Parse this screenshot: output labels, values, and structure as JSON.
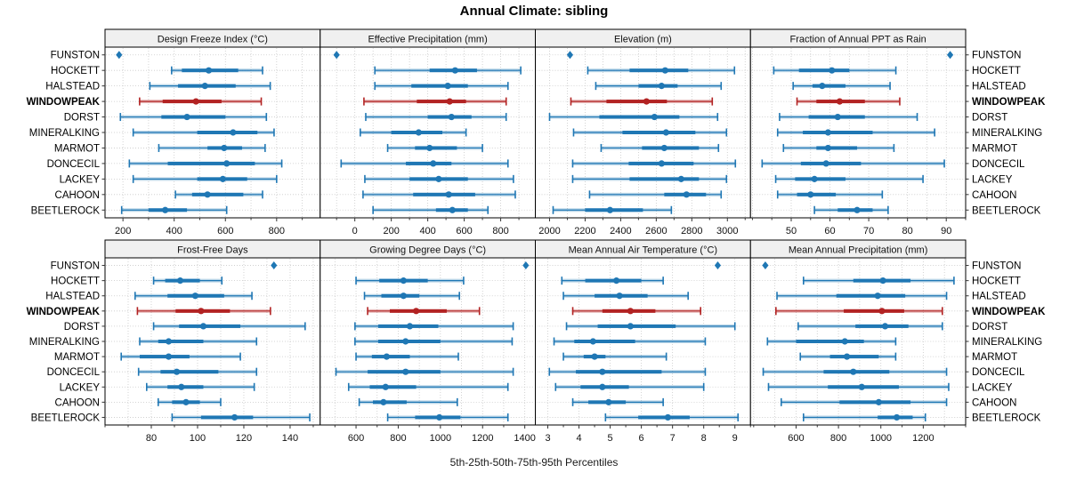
{
  "title": "Annual Climate: sibling",
  "caption": "5th-25th-50th-75th-95th Percentiles",
  "stations": [
    "FUNSTON",
    "HOCKETT",
    "HALSTEAD",
    "WINDOWPEAK",
    "DORST",
    "MINERALKING",
    "MARMOT",
    "DONCECIL",
    "LACKEY",
    "CAHOON",
    "BEETLEROCK"
  ],
  "highlight_station": "WINDOWPEAK",
  "colors": {
    "normal": "#1f77b4",
    "highlight": "#b22222",
    "header_bg": "#f0f0f0",
    "grid": "#c9c9c9",
    "border": "#000000",
    "tick": "#333333"
  },
  "percentiles": [
    "5th",
    "25th",
    "50th",
    "75th",
    "95th"
  ],
  "chart_data": [
    {
      "type": "scatter",
      "style": "percentile-errorbar",
      "id": "design-freeze-index",
      "title": "Design Freeze Index (°C)",
      "row": 0,
      "col": 0,
      "xlim": [
        130,
        970
      ],
      "xticks": [
        200,
        400,
        600,
        800
      ],
      "minor_step": 100,
      "values": [
        [
          185
        ],
        [
          390,
          430,
          535,
          650,
          745
        ],
        [
          305,
          415,
          520,
          640,
          775
        ],
        [
          265,
          355,
          485,
          585,
          740
        ],
        [
          190,
          350,
          450,
          600,
          760
        ],
        [
          240,
          490,
          630,
          725,
          790
        ],
        [
          340,
          530,
          595,
          665,
          755
        ],
        [
          225,
          375,
          605,
          715,
          820
        ],
        [
          240,
          490,
          590,
          685,
          800
        ],
        [
          405,
          470,
          530,
          670,
          745
        ],
        [
          195,
          300,
          365,
          450,
          605
        ]
      ]
    },
    {
      "type": "scatter",
      "style": "percentile-errorbar",
      "id": "effective-precipitation",
      "title": "Effective Precipitation (mm)",
      "row": 0,
      "col": 1,
      "xlim": [
        -190,
        990
      ],
      "xticks": [
        0,
        200,
        400,
        600,
        800
      ],
      "minor_step": 100,
      "values": [
        [
          -100
        ],
        [
          110,
          410,
          550,
          670,
          910
        ],
        [
          110,
          310,
          510,
          620,
          840
        ],
        [
          50,
          340,
          520,
          610,
          830
        ],
        [
          60,
          400,
          530,
          640,
          830
        ],
        [
          30,
          200,
          350,
          480,
          610
        ],
        [
          180,
          330,
          410,
          560,
          700
        ],
        [
          -75,
          280,
          430,
          530,
          840
        ],
        [
          55,
          300,
          460,
          620,
          870
        ],
        [
          45,
          320,
          515,
          660,
          880
        ],
        [
          100,
          445,
          535,
          620,
          730
        ]
      ]
    },
    {
      "type": "scatter",
      "style": "percentile-errorbar",
      "id": "elevation",
      "title": "Elevation (m)",
      "row": 0,
      "col": 2,
      "xlim": [
        1920,
        3130
      ],
      "xticks": [
        2000,
        2200,
        2400,
        2600,
        2800,
        3000
      ],
      "minor_step": 100,
      "values": [
        [
          2115
        ],
        [
          2215,
          2450,
          2650,
          2780,
          3040
        ],
        [
          2260,
          2500,
          2630,
          2720,
          2965
        ],
        [
          2120,
          2320,
          2545,
          2660,
          2915
        ],
        [
          2000,
          2280,
          2590,
          2730,
          2945
        ],
        [
          2135,
          2410,
          2655,
          2820,
          2995
        ],
        [
          2290,
          2520,
          2645,
          2840,
          2950
        ],
        [
          2130,
          2445,
          2630,
          2810,
          3045
        ],
        [
          2130,
          2450,
          2740,
          2840,
          2995
        ],
        [
          2225,
          2645,
          2770,
          2880,
          2965
        ],
        [
          2020,
          2200,
          2340,
          2525,
          2685
        ]
      ]
    },
    {
      "type": "scatter",
      "style": "percentile-errorbar",
      "id": "fraction-annual-ppt-rain",
      "title": "Fraction of Annual PPT as Rain",
      "row": 0,
      "col": 3,
      "xlim": [
        39.5,
        95
      ],
      "xticks": [
        50,
        60,
        70,
        80,
        90
      ],
      "minor_step": 5,
      "values": [
        [
          91
        ],
        [
          45.5,
          52,
          60.5,
          65,
          77
        ],
        [
          50.5,
          55.5,
          58,
          64,
          75.5
        ],
        [
          51.5,
          56.5,
          62.5,
          69,
          78
        ],
        [
          47,
          54.5,
          62,
          69,
          82.5
        ],
        [
          46.5,
          53,
          59.5,
          71,
          87
        ],
        [
          48,
          56.5,
          59.5,
          67,
          76.5
        ],
        [
          42.5,
          52.5,
          59,
          68,
          89.5
        ],
        [
          46,
          51,
          56,
          64,
          84
        ],
        [
          46.5,
          51.5,
          55,
          61.5,
          73.5
        ],
        [
          56,
          62,
          67,
          71,
          75
        ]
      ]
    },
    {
      "type": "scatter",
      "style": "percentile-errorbar",
      "id": "frost-free-days",
      "title": "Frost-Free Days",
      "row": 1,
      "col": 0,
      "xlim": [
        60,
        153
      ],
      "xticks": [
        80,
        100,
        120,
        140
      ],
      "minor_step": 10,
      "values": [
        [
          133
        ],
        [
          81,
          86,
          92.5,
          101,
          110.5
        ],
        [
          73,
          87,
          99,
          111.5,
          123.5
        ],
        [
          74,
          90.5,
          101.5,
          114,
          131.5
        ],
        [
          81,
          92,
          102.5,
          118.5,
          146.5
        ],
        [
          75,
          83,
          87.5,
          102.5,
          125.5
        ],
        [
          67,
          75,
          87.5,
          96.5,
          118.5
        ],
        [
          74.5,
          84,
          91,
          109,
          125.5
        ],
        [
          78,
          87,
          93,
          102.5,
          124.5
        ],
        [
          83,
          89,
          95,
          101,
          110
        ],
        [
          89,
          101.5,
          116,
          124,
          148.5
        ]
      ]
    },
    {
      "type": "scatter",
      "style": "percentile-errorbar",
      "id": "growing-degree-days",
      "title": "Growing Degree Days (°C)",
      "row": 1,
      "col": 1,
      "xlim": [
        430,
        1450
      ],
      "xticks": [
        600,
        800,
        1000,
        1200,
        1400
      ],
      "minor_step": 100,
      "values": [
        [
          1405
        ],
        [
          600,
          710,
          825,
          940,
          1110
        ],
        [
          640,
          720,
          825,
          900,
          1090
        ],
        [
          655,
          760,
          885,
          1030,
          1185
        ],
        [
          595,
          705,
          855,
          990,
          1345
        ],
        [
          595,
          705,
          835,
          1000,
          1340
        ],
        [
          600,
          675,
          745,
          855,
          1085
        ],
        [
          505,
          655,
          835,
          1000,
          1345
        ],
        [
          565,
          665,
          740,
          885,
          1320
        ],
        [
          615,
          680,
          730,
          840,
          1080
        ],
        [
          750,
          880,
          995,
          1095,
          1320
        ]
      ]
    },
    {
      "type": "scatter",
      "style": "percentile-errorbar",
      "id": "mean-annual-air-temperature",
      "title": "Mean Annual Air Temperature (°C)",
      "row": 1,
      "col": 2,
      "xlim": [
        2.6,
        9.5
      ],
      "xticks": [
        3,
        4,
        5,
        6,
        7,
        8,
        9
      ],
      "minor_step": 0.5,
      "grid_step": 1,
      "values": [
        [
          8.45
        ],
        [
          3.45,
          4.2,
          5.2,
          6.0,
          6.7
        ],
        [
          3.5,
          4.5,
          5.3,
          6.2,
          7.5
        ],
        [
          3.8,
          4.75,
          5.65,
          6.45,
          7.9
        ],
        [
          3.6,
          4.6,
          5.65,
          7.1,
          9.0
        ],
        [
          3.2,
          3.85,
          4.45,
          5.8,
          8.05
        ],
        [
          3.5,
          4.15,
          4.5,
          4.85,
          6.8
        ],
        [
          3.05,
          3.9,
          4.75,
          6.65,
          8.05
        ],
        [
          3.25,
          4.05,
          4.75,
          5.6,
          8.0
        ],
        [
          3.8,
          4.3,
          4.95,
          5.5,
          6.7
        ],
        [
          4.85,
          5.9,
          6.85,
          7.55,
          9.1
        ]
      ]
    },
    {
      "type": "scatter",
      "style": "percentile-errorbar",
      "id": "mean-annual-precipitation",
      "title": "Mean Annual Precipitation (mm)",
      "row": 1,
      "col": 3,
      "xlim": [
        385,
        1400
      ],
      "xticks": [
        600,
        800,
        1000,
        1200
      ],
      "minor_step": 100,
      "values": [
        [
          455
        ],
        [
          635,
          870,
          1010,
          1140,
          1345
        ],
        [
          510,
          790,
          985,
          1115,
          1310
        ],
        [
          505,
          825,
          1005,
          1110,
          1290
        ],
        [
          610,
          880,
          1020,
          1130,
          1290
        ],
        [
          465,
          600,
          830,
          920,
          1070
        ],
        [
          620,
          760,
          840,
          990,
          1070
        ],
        [
          445,
          730,
          870,
          1040,
          1310
        ],
        [
          470,
          750,
          910,
          1085,
          1320
        ],
        [
          530,
          805,
          990,
          1140,
          1310
        ],
        [
          635,
          985,
          1075,
          1150,
          1210
        ]
      ]
    }
  ]
}
